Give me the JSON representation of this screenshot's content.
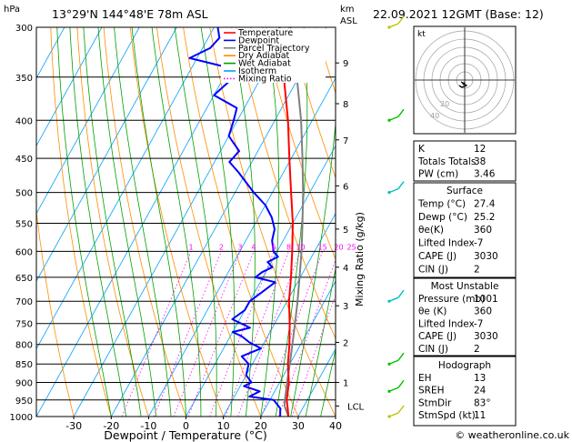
{
  "header": {
    "location": "13°29'N 144°48'E 78m ASL",
    "datetime": "22.09.2021 12GMT (Base: 12)",
    "hpa_label": "hPa",
    "km_label": "km",
    "asl_label": "ASL"
  },
  "legend": {
    "items": [
      {
        "label": "Temperature",
        "color": "#ff0000",
        "style": "solid"
      },
      {
        "label": "Dewpoint",
        "color": "#0000ff",
        "style": "solid"
      },
      {
        "label": "Parcel Trajectory",
        "color": "#808080",
        "style": "solid"
      },
      {
        "label": "Dry Adiabat",
        "color": "#ff8c00",
        "style": "solid"
      },
      {
        "label": "Wet Adiabat",
        "color": "#00a000",
        "style": "solid"
      },
      {
        "label": "Isotherm",
        "color": "#00a0ff",
        "style": "solid"
      },
      {
        "label": "Mixing Ratio",
        "color": "#ff00ff",
        "style": "dotted"
      }
    ]
  },
  "chart_data": {
    "type": "line",
    "xlabel": "Dewpoint / Temperature (°C)",
    "ylabel": "hPa",
    "right_axis_label": "Mixing Ratio (g/kg)",
    "xlim": [
      -40,
      40
    ],
    "ylim": [
      1000,
      300
    ],
    "y_log_scale": true,
    "skew_per_decade_degC": 110,
    "x_ticks": [
      -30,
      -20,
      -10,
      0,
      10,
      20,
      30,
      40
    ],
    "pressure_levels": [
      300,
      350,
      400,
      450,
      500,
      550,
      600,
      650,
      700,
      750,
      800,
      850,
      900,
      950,
      1000
    ],
    "km_ticks": [
      {
        "label": "9",
        "p": 335
      },
      {
        "label": "8",
        "p": 380
      },
      {
        "label": "7",
        "p": 425
      },
      {
        "label": "6",
        "p": 490
      },
      {
        "label": "5",
        "p": 560
      },
      {
        "label": "4",
        "p": 630
      },
      {
        "label": "3",
        "p": 710
      },
      {
        "label": "2",
        "p": 795
      },
      {
        "label": "1",
        "p": 900
      },
      {
        "label": "LCL",
        "p": 968
      }
    ],
    "mixing_ratio_labels": [
      "1",
      "2",
      "3",
      "4",
      "6",
      "8",
      "10",
      "15",
      "20",
      "25"
    ],
    "mixing_ratio_values": [
      1,
      2,
      3,
      4,
      6,
      8,
      10,
      15,
      20,
      25
    ],
    "temperature": {
      "name": "Temperature",
      "color": "#ff0000",
      "points": [
        [
          1000,
          27.4
        ],
        [
          975,
          26.0
        ],
        [
          950,
          24.5
        ],
        [
          925,
          23.5
        ],
        [
          900,
          22.5
        ],
        [
          875,
          21.0
        ],
        [
          850,
          19.5
        ],
        [
          800,
          17.0
        ],
        [
          750,
          14.0
        ],
        [
          700,
          10.5
        ],
        [
          650,
          7.5
        ],
        [
          600,
          4.0
        ],
        [
          550,
          0.0
        ],
        [
          500,
          -5.0
        ],
        [
          450,
          -10.5
        ],
        [
          400,
          -16.5
        ],
        [
          350,
          -24.0
        ],
        [
          300,
          -32.5
        ]
      ]
    },
    "dewpoint": {
      "name": "Dewpoint",
      "color": "#0000ff",
      "points": [
        [
          1000,
          25.2
        ],
        [
          975,
          24.0
        ],
        [
          950,
          21.0
        ],
        [
          940,
          14.0
        ],
        [
          925,
          16.0
        ],
        [
          910,
          11.0
        ],
        [
          900,
          12.5
        ],
        [
          880,
          10.0
        ],
        [
          850,
          9.0
        ],
        [
          830,
          6.0
        ],
        [
          810,
          10.0
        ],
        [
          795,
          6.0
        ],
        [
          780,
          3.0
        ],
        [
          770,
          0.0
        ],
        [
          760,
          4.0
        ],
        [
          740,
          -2.0
        ],
        [
          720,
          0.0
        ],
        [
          700,
          0.0
        ],
        [
          680,
          2.0
        ],
        [
          660,
          4.0
        ],
        [
          650,
          -2.0
        ],
        [
          640,
          -1.0
        ],
        [
          630,
          1.0
        ],
        [
          620,
          -1.0
        ],
        [
          610,
          1.0
        ],
        [
          600,
          -1.0
        ],
        [
          580,
          -3.0
        ],
        [
          560,
          -4.0
        ],
        [
          540,
          -6.5
        ],
        [
          520,
          -10.0
        ],
        [
          500,
          -15.0
        ],
        [
          470,
          -22.0
        ],
        [
          455,
          -26.0
        ],
        [
          440,
          -25.0
        ],
        [
          420,
          -30.0
        ],
        [
          400,
          -31.0
        ],
        [
          385,
          -32.0
        ],
        [
          370,
          -40.0
        ],
        [
          355,
          -38.0
        ],
        [
          340,
          -40.0
        ],
        [
          330,
          -52.0
        ],
        [
          320,
          -48.0
        ],
        [
          310,
          -47.0
        ],
        [
          300,
          -49.0
        ]
      ]
    },
    "parcel": {
      "name": "Parcel Trajectory",
      "color": "#808080",
      "points": [
        [
          1000,
          27.4
        ],
        [
          968,
          24.8
        ],
        [
          950,
          24.0
        ],
        [
          900,
          22.0
        ],
        [
          850,
          20.0
        ],
        [
          800,
          17.8
        ],
        [
          750,
          15.4
        ],
        [
          700,
          12.8
        ],
        [
          650,
          9.8
        ],
        [
          600,
          6.5
        ],
        [
          550,
          2.6
        ],
        [
          500,
          -1.8
        ],
        [
          450,
          -7.0
        ],
        [
          400,
          -13.0
        ],
        [
          350,
          -20.5
        ],
        [
          300,
          -29.5
        ]
      ]
    }
  },
  "wind_barbs": [
    {
      "p": 300,
      "color": "#c0c000"
    },
    {
      "p": 400,
      "color": "#00c000"
    },
    {
      "p": 500,
      "color": "#00c0c0"
    },
    {
      "p": 700,
      "color": "#00c0c0"
    },
    {
      "p": 850,
      "color": "#00c000"
    },
    {
      "p": 925,
      "color": "#00c000"
    },
    {
      "p": 1000,
      "color": "#c0c000"
    }
  ],
  "hodograph": {
    "label": "kt",
    "ring_labels": [
      "40",
      "20"
    ]
  },
  "indices": {
    "rows": [
      {
        "label": "K",
        "value": "12"
      },
      {
        "label": "Totals Totals",
        "value": "38"
      },
      {
        "label": "PW (cm)",
        "value": "3.46"
      }
    ]
  },
  "surface": {
    "title": "Surface",
    "rows": [
      {
        "label": "Temp (°C)",
        "value": "27.4"
      },
      {
        "label": "Dewp (°C)",
        "value": "25.2"
      },
      {
        "label": "θe(K)",
        "value": "360"
      },
      {
        "label": "Lifted Index",
        "value": "-7"
      },
      {
        "label": "CAPE (J)",
        "value": "3030"
      },
      {
        "label": "CIN (J)",
        "value": "2"
      }
    ]
  },
  "most_unstable": {
    "title": "Most Unstable",
    "rows": [
      {
        "label": "Pressure (mb)",
        "value": "1001"
      },
      {
        "label": "θe (K)",
        "value": "360"
      },
      {
        "label": "Lifted Index",
        "value": "-7"
      },
      {
        "label": "CAPE (J)",
        "value": "3030"
      },
      {
        "label": "CIN (J)",
        "value": "2"
      }
    ]
  },
  "hodograph_table": {
    "title": "Hodograph",
    "rows": [
      {
        "label": "EH",
        "value": "13"
      },
      {
        "label": "SREH",
        "value": "24"
      },
      {
        "label": "StmDir",
        "value": "83°"
      },
      {
        "label": "StmSpd (kt)",
        "value": "11"
      }
    ]
  },
  "footer": {
    "copyright": "© weatheronline.co.uk"
  }
}
